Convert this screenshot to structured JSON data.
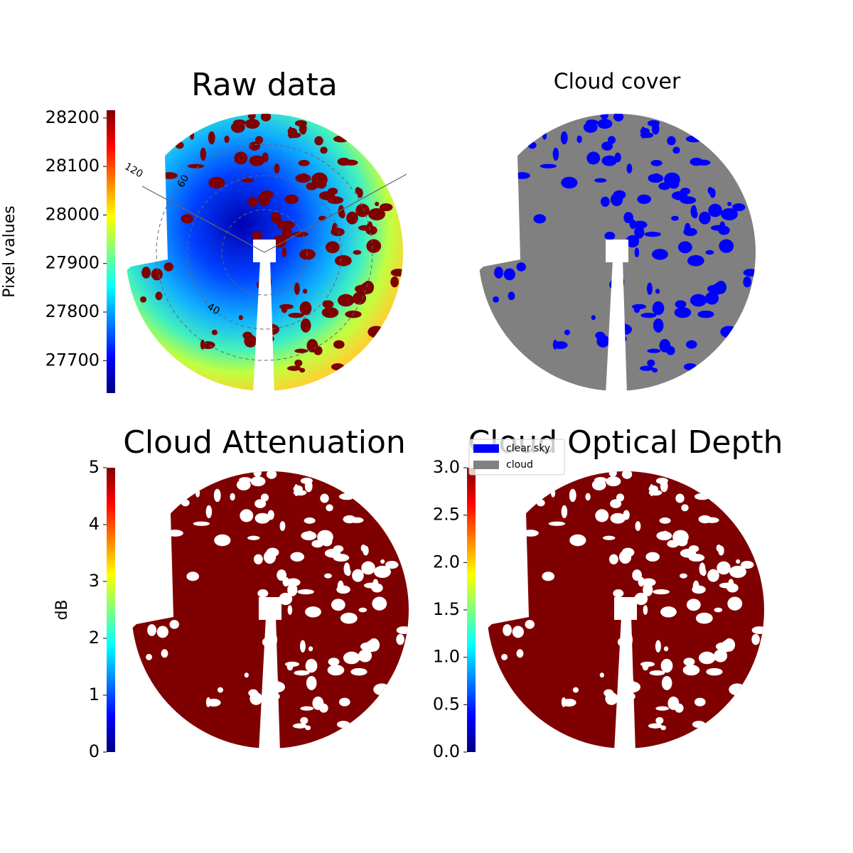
{
  "chart_data": [
    {
      "type": "image",
      "title": "Raw data",
      "colorbar": {
        "label": "Pixel values",
        "colormap": "jet",
        "ylim": [
          27633,
          28216
        ],
        "yticks": [
          27700,
          27800,
          27900,
          28000,
          28100,
          28200
        ]
      },
      "annotations": [
        "120",
        "60",
        "40"
      ]
    },
    {
      "type": "image",
      "title": "Cloud cover",
      "series": [
        {
          "name": "clear sky",
          "color": "#0000ff"
        },
        {
          "name": "cloud",
          "color": "#808080"
        }
      ]
    },
    {
      "type": "image",
      "title": "Cloud Attenuation",
      "colorbar": {
        "label": "dB",
        "colormap": "jet",
        "ylim": [
          0,
          5
        ],
        "yticks": [
          0,
          1,
          2,
          3,
          4,
          5
        ]
      }
    },
    {
      "type": "image",
      "title": "Cloud Optical Depth",
      "colorbar": {
        "colormap": "jet",
        "ylim": [
          0,
          3
        ],
        "yticks": [
          {
            "value": 0,
            "label": "0.0"
          },
          0.5,
          {
            "value": 1,
            "label": "1.0"
          },
          1.5,
          {
            "value": 2,
            "label": "2.0"
          },
          2.5,
          {
            "value": 3,
            "label": "3.0"
          }
        ]
      }
    }
  ]
}
